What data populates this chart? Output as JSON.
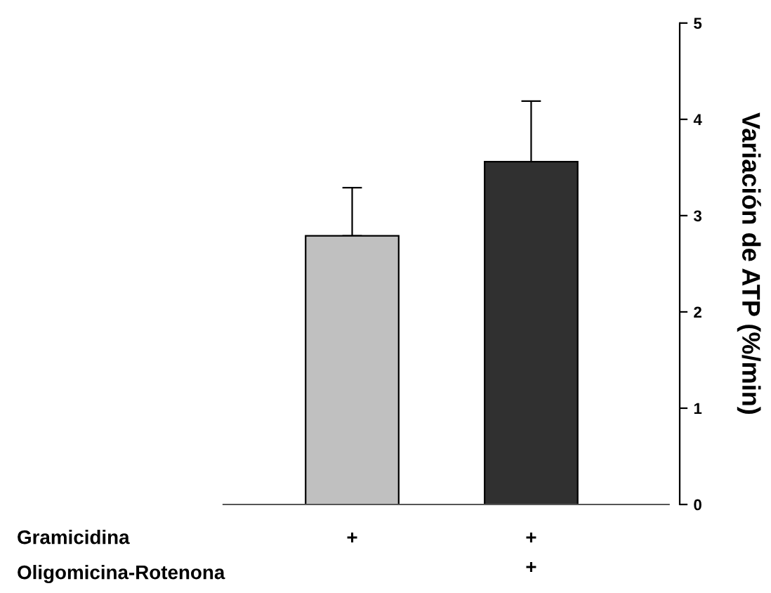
{
  "chart_data": {
    "type": "bar",
    "categories": [
      "+\n",
      "+\n+"
    ],
    "values": [
      2.79,
      3.56
    ],
    "colors": [
      "#c0c0c0",
      "#303030"
    ],
    "errors": [
      [
        2.79,
        3.29
      ],
      [
        3.56,
        4.19
      ]
    ],
    "ylabel": "Variación de ATP (%/min)",
    "ylim": [
      0,
      5
    ],
    "yticks": [
      0,
      1,
      2,
      3,
      4,
      5
    ],
    "annotations": [
      "Gramicidina",
      "Oligomicina-Rotenona"
    ],
    "grid": false,
    "legend": false
  }
}
